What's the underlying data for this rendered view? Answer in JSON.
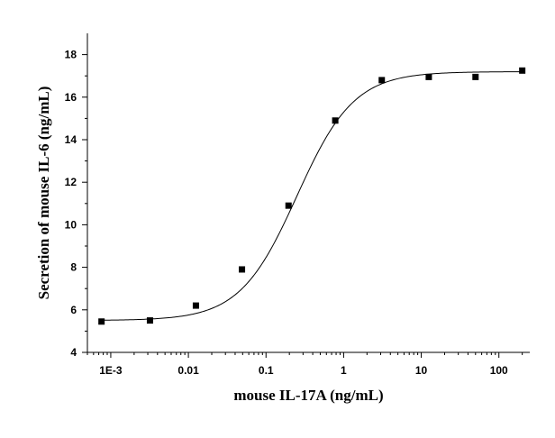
{
  "chart_data": {
    "type": "scatter",
    "title": "",
    "xlabel": "mouse IL-17A (ng/mL)",
    "ylabel": "Secretion of mouse IL-6 (ng/mL)",
    "x_scale": "log",
    "xlim": [
      0.0005,
      250
    ],
    "ylim": [
      4,
      19
    ],
    "x_ticks": [
      {
        "value": 0.001,
        "label": "1E-3"
      },
      {
        "value": 0.01,
        "label": "0.01"
      },
      {
        "value": 0.1,
        "label": "0.1"
      },
      {
        "value": 1,
        "label": "1"
      },
      {
        "value": 10,
        "label": "10"
      },
      {
        "value": 100,
        "label": "100"
      }
    ],
    "y_ticks": [
      {
        "value": 4,
        "label": "4"
      },
      {
        "value": 6,
        "label": "6"
      },
      {
        "value": 8,
        "label": "8"
      },
      {
        "value": 10,
        "label": "10"
      },
      {
        "value": 12,
        "label": "12"
      },
      {
        "value": 14,
        "label": "14"
      },
      {
        "value": 16,
        "label": "16"
      },
      {
        "value": 18,
        "label": "18"
      }
    ],
    "grid": false,
    "series": [
      {
        "points": [
          {
            "x": 0.00076,
            "y": 5.45
          },
          {
            "x": 0.0032,
            "y": 5.5
          },
          {
            "x": 0.0125,
            "y": 6.2
          },
          {
            "x": 0.049,
            "y": 7.9
          },
          {
            "x": 0.195,
            "y": 10.9
          },
          {
            "x": 0.78,
            "y": 14.9
          },
          {
            "x": 3.1,
            "y": 16.8
          },
          {
            "x": 12.5,
            "y": 16.95
          },
          {
            "x": 50,
            "y": 16.95
          },
          {
            "x": 200,
            "y": 17.25
          }
        ],
        "marker": "square",
        "color": "#000000"
      }
    ],
    "fit_curve": {
      "model": "4PL",
      "bottom": 5.5,
      "top": 17.2,
      "ec50": 0.25,
      "hill": 1.18,
      "color": "#000000"
    }
  }
}
